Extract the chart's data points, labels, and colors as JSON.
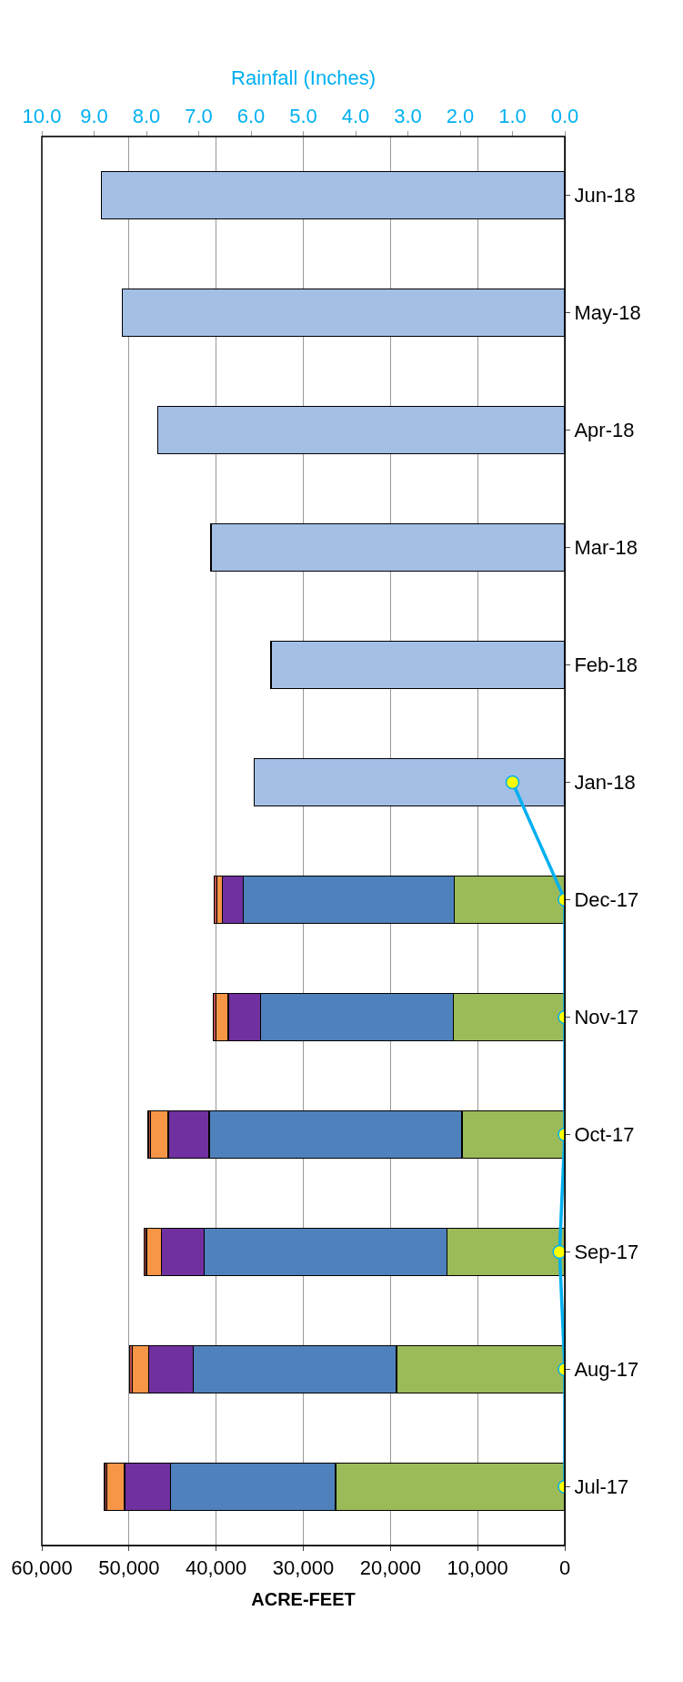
{
  "chart_data": {
    "type": "bar",
    "orientation": "horizontal",
    "stacked": true,
    "categories": [
      "Jun-18",
      "May-18",
      "Apr-18",
      "Mar-18",
      "Feb-18",
      "Jan-18",
      "Dec-17",
      "Nov-17",
      "Oct-17",
      "Sep-17",
      "Aug-17",
      "Jul-17"
    ],
    "series": [
      {
        "color": "#9bbb59",
        "values": [
          null,
          null,
          null,
          null,
          null,
          null,
          12700,
          12800,
          11800,
          13500,
          19300,
          26300
        ]
      },
      {
        "color": "#4f81bd",
        "values": [
          null,
          null,
          null,
          null,
          null,
          null,
          24200,
          22100,
          29000,
          27900,
          23300,
          18900
        ]
      },
      {
        "color": "#7030a0",
        "values": [
          null,
          null,
          null,
          null,
          null,
          null,
          2400,
          3700,
          4700,
          4900,
          5100,
          5300
        ]
      },
      {
        "color": "#f79646",
        "values": [
          null,
          null,
          null,
          null,
          null,
          null,
          600,
          1400,
          2000,
          1700,
          1900,
          2000
        ]
      },
      {
        "color": "#c0504d",
        "values": [
          null,
          null,
          null,
          null,
          null,
          null,
          300,
          300,
          300,
          300,
          300,
          300
        ]
      },
      {
        "color": "#a4bfe6",
        "values": [
          53200,
          50800,
          46700,
          40600,
          33700,
          35600,
          null,
          null,
          null,
          null,
          null,
          null
        ]
      },
      {
        "type": "line",
        "axis": "x2",
        "color": "#00b0f0",
        "marker": "circle",
        "values": [
          null,
          null,
          null,
          null,
          null,
          1.0,
          0.0,
          0.0,
          0.0,
          0.1,
          0.0,
          0.0
        ]
      }
    ],
    "xlabel": "ACRE-FEET",
    "x2label": "Rainfall (Inches)",
    "xlim": [
      60000,
      0
    ],
    "xticks": [
      {
        "value": 60000,
        "label": "60,000"
      },
      {
        "value": 50000,
        "label": "50,000"
      },
      {
        "value": 40000,
        "label": "40,000"
      },
      {
        "value": 30000,
        "label": "30,000"
      },
      {
        "value": 20000,
        "label": "20,000"
      },
      {
        "value": 10000,
        "label": "10,000"
      },
      0
    ],
    "x2lim": [
      10,
      0
    ],
    "x2ticks": [
      {
        "value": 10,
        "label": "10.0"
      },
      {
        "value": 9,
        "label": "9.0"
      },
      {
        "value": 8,
        "label": "8.0"
      },
      {
        "value": 7,
        "label": "7.0"
      },
      {
        "value": 6,
        "label": "6.0"
      },
      {
        "value": 5,
        "label": "5.0"
      },
      {
        "value": 4,
        "label": "4.0"
      },
      {
        "value": 3,
        "label": "3.0"
      },
      {
        "value": 2,
        "label": "2.0"
      },
      {
        "value": 1,
        "label": "1.0"
      },
      {
        "value": 0,
        "label": "0.0"
      }
    ],
    "grid": "x"
  }
}
